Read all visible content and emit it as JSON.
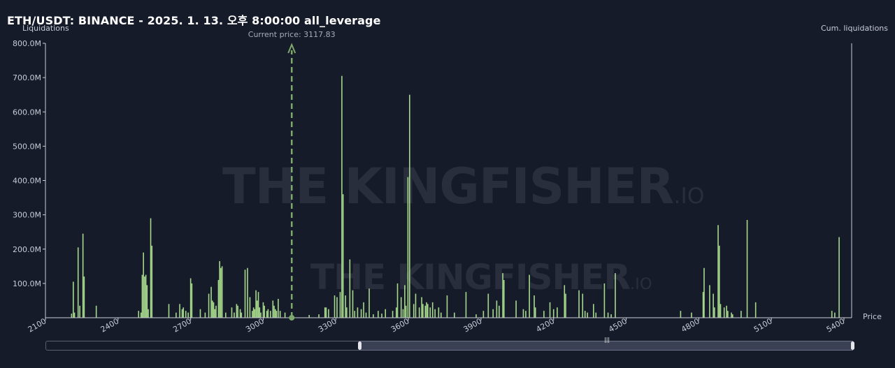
{
  "header": {
    "title": "ETH/USDT: BINANCE - 2025. 1. 13. 오후 8:00:00 all_leverage"
  },
  "watermark": {
    "brand": "THE KINGFISHER",
    "suffix": ".IO"
  },
  "colors": {
    "background": "#161b29",
    "bar": "#a7d98c",
    "axis": "#c9ccd6",
    "price_line": "#7ea86b",
    "grid": "#2a3040"
  },
  "chart_data": {
    "type": "bar",
    "title": "ETH/USDT: BINANCE - 2025. 1. 13. 오후 8:00:00 all_leverage",
    "ylabel": "Liquidations",
    "y2label": "Cum. liquidations",
    "xlabel": "Price",
    "xlim": [
      2100,
      5400
    ],
    "ylim": [
      0,
      800000000
    ],
    "yticks": [
      "800.0M",
      "700.0M",
      "600.0M",
      "500.0M",
      "400.0M",
      "300.0M",
      "200.0M",
      "100.0M"
    ],
    "xticks": [
      "2100",
      "2400",
      "2700",
      "3000",
      "3300",
      "3600",
      "3900",
      "4200",
      "4500",
      "4800",
      "5100",
      "5400"
    ],
    "current_price_label": "Current price: 3117.83",
    "current_price": 3117.83,
    "grid": false,
    "legend": "none",
    "bars": [
      [
        2208,
        12
      ],
      [
        2215,
        105
      ],
      [
        2220,
        15
      ],
      [
        2235,
        205
      ],
      [
        2242,
        35
      ],
      [
        2255,
        245
      ],
      [
        2260,
        120
      ],
      [
        2310,
        35
      ],
      [
        2485,
        20
      ],
      [
        2495,
        15
      ],
      [
        2500,
        125
      ],
      [
        2505,
        190
      ],
      [
        2510,
        120
      ],
      [
        2515,
        125
      ],
      [
        2520,
        95
      ],
      [
        2525,
        25
      ],
      [
        2535,
        290
      ],
      [
        2540,
        210
      ],
      [
        2610,
        40
      ],
      [
        2640,
        15
      ],
      [
        2655,
        40
      ],
      [
        2665,
        25
      ],
      [
        2670,
        30
      ],
      [
        2680,
        20
      ],
      [
        2690,
        15
      ],
      [
        2700,
        115
      ],
      [
        2705,
        100
      ],
      [
        2740,
        25
      ],
      [
        2760,
        15
      ],
      [
        2775,
        70
      ],
      [
        2785,
        90
      ],
      [
        2790,
        50
      ],
      [
        2795,
        45
      ],
      [
        2800,
        25
      ],
      [
        2805,
        35
      ],
      [
        2815,
        110
      ],
      [
        2820,
        165
      ],
      [
        2825,
        145
      ],
      [
        2830,
        150
      ],
      [
        2845,
        15
      ],
      [
        2870,
        30
      ],
      [
        2880,
        15
      ],
      [
        2890,
        40
      ],
      [
        2895,
        35
      ],
      [
        2905,
        25
      ],
      [
        2910,
        15
      ],
      [
        2925,
        140
      ],
      [
        2935,
        145
      ],
      [
        2945,
        60
      ],
      [
        2955,
        20
      ],
      [
        2960,
        30
      ],
      [
        2965,
        25
      ],
      [
        2970,
        80
      ],
      [
        2975,
        50
      ],
      [
        2980,
        75
      ],
      [
        2985,
        30
      ],
      [
        2990,
        15
      ],
      [
        3000,
        45
      ],
      [
        3005,
        35
      ],
      [
        3015,
        20
      ],
      [
        3020,
        25
      ],
      [
        3030,
        20
      ],
      [
        3040,
        50
      ],
      [
        3045,
        35
      ],
      [
        3050,
        25
      ],
      [
        3055,
        20
      ],
      [
        3062,
        55
      ],
      [
        3070,
        20
      ],
      [
        3090,
        15
      ],
      [
        3190,
        8
      ],
      [
        3230,
        10
      ],
      [
        3255,
        30
      ],
      [
        3260,
        30
      ],
      [
        3270,
        25
      ],
      [
        3295,
        65
      ],
      [
        3305,
        60
      ],
      [
        3318,
        75
      ],
      [
        3325,
        705
      ],
      [
        3330,
        360
      ],
      [
        3340,
        65
      ],
      [
        3345,
        30
      ],
      [
        3358,
        170
      ],
      [
        3370,
        80
      ],
      [
        3378,
        20
      ],
      [
        3390,
        30
      ],
      [
        3405,
        25
      ],
      [
        3415,
        45
      ],
      [
        3425,
        15
      ],
      [
        3438,
        85
      ],
      [
        3455,
        10
      ],
      [
        3475,
        20
      ],
      [
        3490,
        12
      ],
      [
        3505,
        25
      ],
      [
        3535,
        20
      ],
      [
        3550,
        30
      ],
      [
        3555,
        100
      ],
      [
        3570,
        60
      ],
      [
        3578,
        25
      ],
      [
        3585,
        95
      ],
      [
        3590,
        35
      ],
      [
        3598,
        410
      ],
      [
        3605,
        650
      ],
      [
        3622,
        40
      ],
      [
        3630,
        70
      ],
      [
        3645,
        30
      ],
      [
        3655,
        60
      ],
      [
        3660,
        40
      ],
      [
        3670,
        35
      ],
      [
        3675,
        45
      ],
      [
        3680,
        40
      ],
      [
        3690,
        30
      ],
      [
        3700,
        45
      ],
      [
        3710,
        25
      ],
      [
        3725,
        30
      ],
      [
        3735,
        15
      ],
      [
        3760,
        65
      ],
      [
        3790,
        15
      ],
      [
        3838,
        75
      ],
      [
        3880,
        10
      ],
      [
        3910,
        20
      ],
      [
        3930,
        70
      ],
      [
        3950,
        25
      ],
      [
        3965,
        50
      ],
      [
        3975,
        35
      ],
      [
        3990,
        130
      ],
      [
        3995,
        110
      ],
      [
        4045,
        50
      ],
      [
        4075,
        25
      ],
      [
        4085,
        20
      ],
      [
        4100,
        125
      ],
      [
        4120,
        65
      ],
      [
        4125,
        30
      ],
      [
        4160,
        20
      ],
      [
        4185,
        45
      ],
      [
        4200,
        25
      ],
      [
        4215,
        30
      ],
      [
        4245,
        95
      ],
      [
        4250,
        70
      ],
      [
        4305,
        80
      ],
      [
        4320,
        70
      ],
      [
        4330,
        20
      ],
      [
        4340,
        15
      ],
      [
        4365,
        40
      ],
      [
        4375,
        15
      ],
      [
        4410,
        100
      ],
      [
        4425,
        15
      ],
      [
        4438,
        10
      ],
      [
        4455,
        130
      ],
      [
        4725,
        20
      ],
      [
        4770,
        15
      ],
      [
        4818,
        75
      ],
      [
        4822,
        145
      ],
      [
        4845,
        95
      ],
      [
        4860,
        70
      ],
      [
        4865,
        30
      ],
      [
        4880,
        270
      ],
      [
        4885,
        210
      ],
      [
        4890,
        40
      ],
      [
        4905,
        30
      ],
      [
        4915,
        35
      ],
      [
        4920,
        20
      ],
      [
        4935,
        15
      ],
      [
        4940,
        10
      ],
      [
        4975,
        20
      ],
      [
        5000,
        285
      ],
      [
        5035,
        45
      ],
      [
        5350,
        20
      ],
      [
        5362,
        15
      ],
      [
        5380,
        235
      ]
    ]
  }
}
